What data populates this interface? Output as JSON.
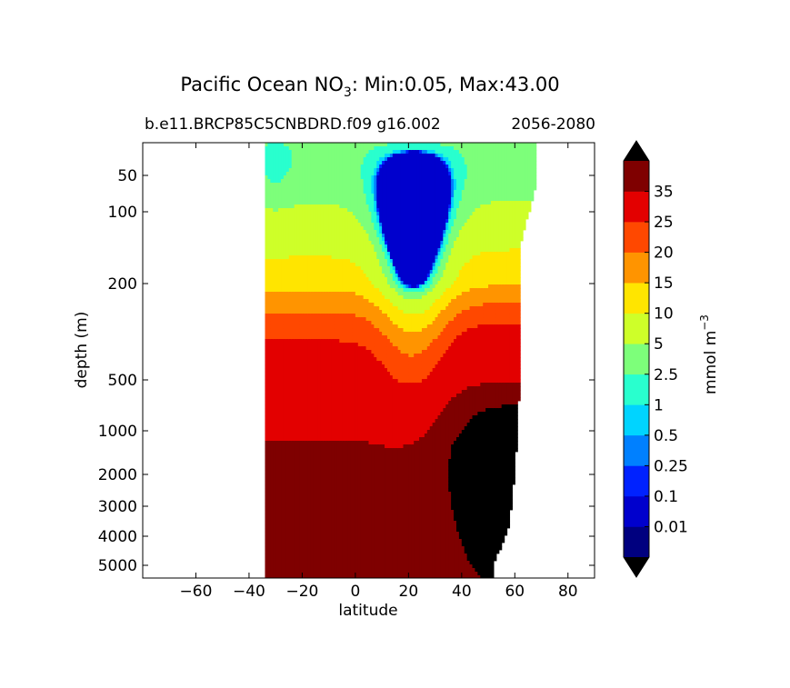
{
  "chart_data": {
    "type": "heatmap",
    "title_main": "Pacific Ocean NO",
    "title_sub": "3",
    "title_rest": ": Min:0.05, Max:43.00",
    "subtitle_left": "b.e11.BRCP85C5CNBDRD.f09 g16.002",
    "subtitle_right": "2056-2080",
    "xlabel": "latitude",
    "ylabel": "depth (m)",
    "x_ticks": [
      -60,
      -40,
      -20,
      0,
      20,
      40,
      60,
      80
    ],
    "x_tick_labels": [
      "−60",
      "−40",
      "−20",
      "0",
      "20",
      "40",
      "60",
      "80"
    ],
    "xlim": [
      -80,
      90
    ],
    "y_ticks": [
      50,
      100,
      200,
      500,
      1000,
      2000,
      3000,
      4000,
      5000
    ],
    "y_tick_labels": [
      "50",
      "100",
      "200",
      "500",
      "1000",
      "2000",
      "3000",
      "4000",
      "5000"
    ],
    "ylim": [
      5500,
      10
    ],
    "y_scale": "depth-stretched (inverted)",
    "data_lat_range": [
      -34,
      68
    ],
    "colorbar": {
      "label": "mmol m",
      "label_exp": "−3",
      "extend": "both",
      "under_color": "#000000",
      "over_color": "#000000",
      "levels": [
        0,
        0.01,
        0.1,
        0.25,
        0.5,
        1,
        2.5,
        5,
        10,
        15,
        20,
        25,
        35,
        40
      ],
      "tick_labels": [
        "0.01",
        "0.1",
        "0.25",
        "0.5",
        "1",
        "2.5",
        "5",
        "10",
        "15",
        "20",
        "25",
        "35"
      ],
      "colors": [
        "#00007f",
        "#0000cd",
        "#0022ff",
        "#0080ff",
        "#00d4ff",
        "#29ffce",
        "#7dff7a",
        "#ceff29",
        "#ffe500",
        "#ff9400",
        "#ff4800",
        "#e30000",
        "#7f0000"
      ]
    }
  }
}
